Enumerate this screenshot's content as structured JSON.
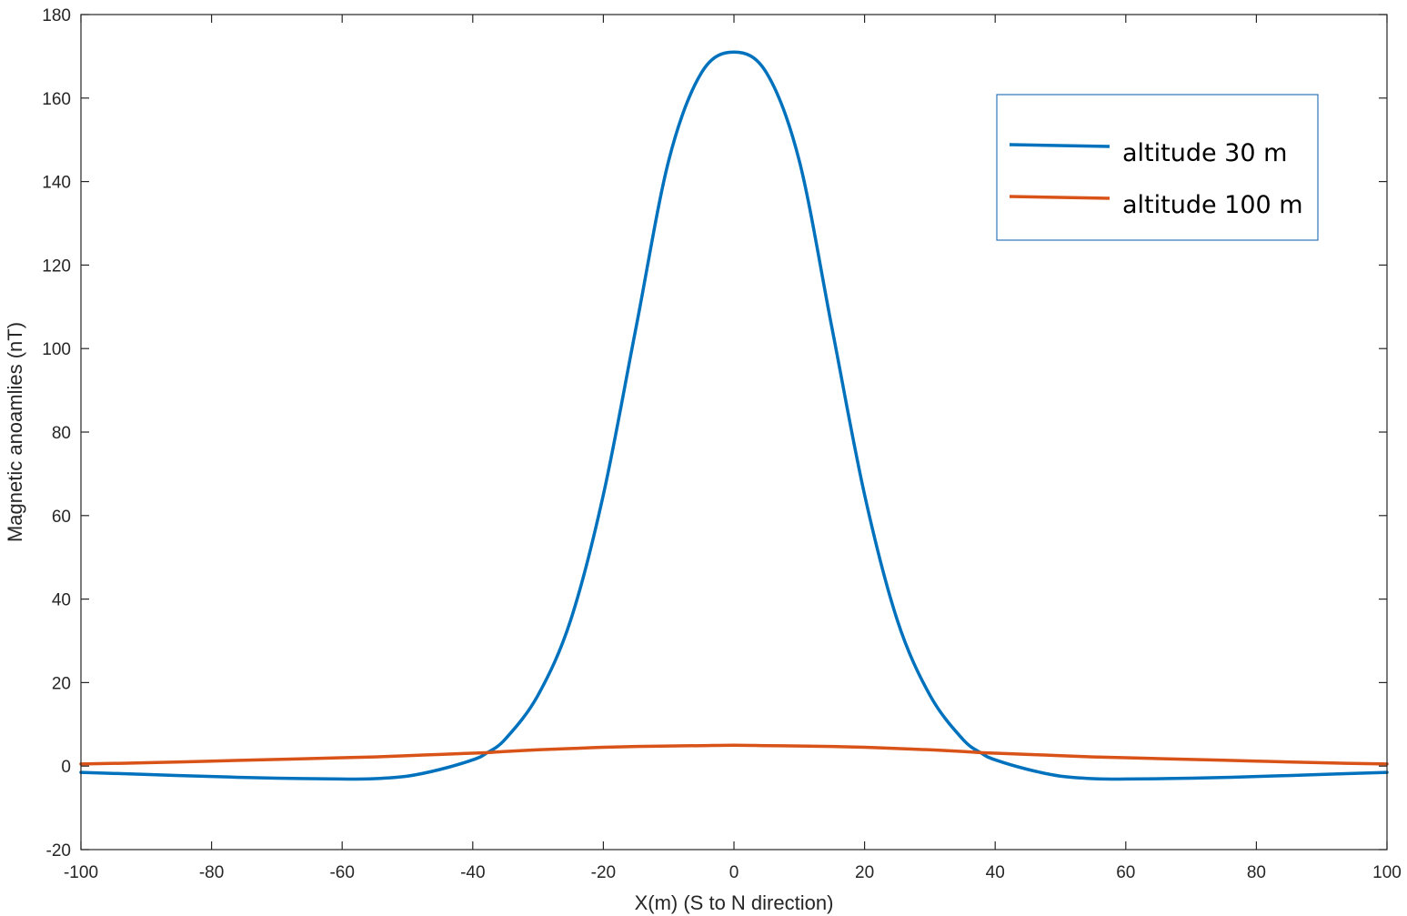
{
  "chart_data": {
    "type": "line",
    "title": "",
    "xlabel": "X(m) (S to N direction)",
    "ylabel": "Magnetic anoamlies (nT)",
    "xlim": [
      -100,
      100
    ],
    "ylim": [
      -20,
      180
    ],
    "xticks": [
      -100,
      -80,
      -60,
      -40,
      -20,
      0,
      20,
      40,
      60,
      80,
      100
    ],
    "yticks": [
      -20,
      0,
      20,
      40,
      60,
      80,
      100,
      120,
      140,
      160,
      180
    ],
    "grid": false,
    "legend_position": "top-right",
    "x": [
      -100,
      -90,
      -80,
      -70,
      -60,
      -55,
      -50,
      -45,
      -40,
      -38,
      -35,
      -30,
      -25,
      -20,
      -15,
      -10,
      -5,
      0,
      5,
      10,
      15,
      20,
      25,
      30,
      35,
      38,
      40,
      45,
      50,
      55,
      60,
      70,
      80,
      90,
      100
    ],
    "series": [
      {
        "name": "altitude 30 m",
        "color": "#0072BD",
        "values": [
          -1.5,
          -2.0,
          -2.5,
          -2.9,
          -3.1,
          -3.0,
          -2.4,
          -0.8,
          1.5,
          3.0,
          6.5,
          17,
          35,
          65,
          105,
          145,
          166,
          171,
          166,
          145,
          105,
          65,
          35,
          17,
          6.5,
          3.0,
          1.5,
          -0.8,
          -2.4,
          -3.0,
          -3.1,
          -2.9,
          -2.5,
          -2.0,
          -1.5
        ]
      },
      {
        "name": "altitude 100 m",
        "color": "#D95319",
        "values": [
          0.5,
          0.8,
          1.2,
          1.6,
          2.0,
          2.2,
          2.5,
          2.8,
          3.1,
          3.2,
          3.5,
          3.9,
          4.2,
          4.5,
          4.7,
          4.8,
          4.9,
          5.0,
          4.9,
          4.8,
          4.7,
          4.5,
          4.2,
          3.9,
          3.5,
          3.2,
          3.1,
          2.8,
          2.5,
          2.2,
          2.0,
          1.6,
          1.2,
          0.8,
          0.5
        ]
      }
    ]
  }
}
